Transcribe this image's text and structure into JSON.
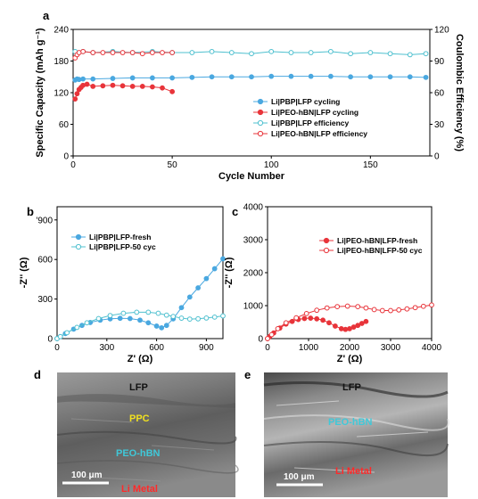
{
  "chart_data": [
    {
      "panel": "a",
      "type": "scatter",
      "xlabel": "Cycle Number",
      "ylabel": "Specific Capacity (mAh g⁻¹)",
      "y2label": "Coulombic Efficiency (%)",
      "xlim": [
        0,
        180
      ],
      "ylim": [
        0,
        240
      ],
      "y2lim": [
        0,
        120
      ],
      "xticks": [
        0,
        50,
        100,
        150
      ],
      "yticks": [
        0,
        60,
        120,
        180,
        240
      ],
      "y2ticks": [
        0,
        30,
        60,
        90,
        120
      ],
      "legend_position": "center-right",
      "series": [
        {
          "name": "Li|PBP|LFP cycling",
          "axis": "left",
          "marker": "filled-circle",
          "color": "#4aa8e0",
          "x": [
            1,
            2,
            3,
            5,
            10,
            20,
            30,
            40,
            50,
            60,
            70,
            80,
            90,
            100,
            110,
            120,
            130,
            140,
            150,
            160,
            170,
            178
          ],
          "y": [
            144,
            146,
            145,
            146,
            146,
            147,
            148,
            148,
            148,
            149,
            150,
            150,
            150,
            151,
            151,
            151,
            151,
            150,
            150,
            150,
            150,
            149
          ]
        },
        {
          "name": "Li|PEO-hBN|LFP cycling",
          "axis": "left",
          "marker": "filled-circle",
          "color": "#e8343a",
          "x": [
            1,
            2,
            3,
            4,
            5,
            7,
            10,
            15,
            20,
            25,
            30,
            35,
            40,
            45,
            50
          ],
          "y": [
            108,
            118,
            126,
            130,
            134,
            136,
            132,
            133,
            134,
            133,
            132,
            132,
            131,
            129,
            122
          ]
        },
        {
          "name": "Li|PBP|LFP efficiency",
          "axis": "right",
          "marker": "open-circle",
          "color": "#4fc0cf",
          "x": [
            1,
            5,
            10,
            20,
            30,
            40,
            50,
            60,
            70,
            80,
            90,
            100,
            110,
            120,
            130,
            140,
            150,
            160,
            170,
            178
          ],
          "y": [
            99,
            99,
            98,
            99,
            98,
            99,
            98,
            98,
            99,
            98,
            97,
            99,
            98,
            98,
            99,
            97,
            98,
            97,
            96,
            97
          ]
        },
        {
          "name": "Li|PEO-hBN|LFP efficiency",
          "axis": "right",
          "marker": "open-circle",
          "color": "#e8343a",
          "x": [
            1,
            2,
            3,
            5,
            10,
            15,
            20,
            25,
            30,
            35,
            40,
            45,
            50
          ],
          "y": [
            93,
            96,
            98,
            99,
            98,
            98,
            98,
            98,
            98,
            97,
            98,
            98,
            98
          ]
        }
      ]
    },
    {
      "panel": "b",
      "type": "scatter",
      "xlabel": "Z' (Ω)",
      "ylabel": "-Z'' (Ω)",
      "xlim": [
        0,
        1000
      ],
      "ylim": [
        0,
        1000
      ],
      "xticks": [
        0,
        300,
        600,
        900
      ],
      "yticks": [
        0,
        300,
        600,
        900
      ],
      "ytick_labels": [
        "0",
        "300",
        "600",
        "'900"
      ],
      "legend_position": "top-left",
      "series": [
        {
          "name": "Li|PBP|LFP-fresh",
          "marker": "filled-circle",
          "color": "#4aa8e0",
          "x": [
            0,
            20,
            50,
            100,
            150,
            200,
            260,
            320,
            380,
            440,
            500,
            550,
            600,
            630,
            660,
            700,
            750,
            800,
            850,
            900,
            950,
            1000
          ],
          "y": [
            0,
            15,
            38,
            72,
            100,
            122,
            140,
            150,
            154,
            152,
            140,
            120,
            95,
            82,
            100,
            150,
            235,
            315,
            385,
            455,
            530,
            605
          ]
        },
        {
          "name": "Li|PBP|LFP-50 cyc",
          "marker": "open-circle",
          "color": "#4fc0cf",
          "x": [
            0,
            20,
            60,
            120,
            180,
            250,
            320,
            400,
            480,
            550,
            610,
            660,
            700,
            750,
            800,
            850,
            900,
            950,
            1000
          ],
          "y": [
            0,
            15,
            45,
            85,
            120,
            152,
            175,
            192,
            200,
            200,
            192,
            178,
            168,
            155,
            148,
            150,
            156,
            163,
            172
          ]
        }
      ]
    },
    {
      "panel": "c",
      "type": "scatter",
      "xlabel": "Z' (Ω)",
      "ylabel": "-Z'' (Ω)",
      "xlim": [
        0,
        4000
      ],
      "ylim": [
        0,
        4000
      ],
      "xticks": [
        0,
        1000,
        2000,
        3000,
        4000
      ],
      "yticks": [
        0,
        1000,
        2000,
        3000,
        4000
      ],
      "legend_position": "center-right",
      "series": [
        {
          "name": "Li|PEO-hBN|LFP-fresh",
          "marker": "filled-circle",
          "color": "#e8343a",
          "x": [
            0,
            50,
            150,
            300,
            450,
            600,
            750,
            900,
            1050,
            1200,
            1350,
            1500,
            1650,
            1800,
            1900,
            2000,
            2100,
            2200,
            2300,
            2400
          ],
          "y": [
            0,
            60,
            170,
            320,
            440,
            520,
            580,
            610,
            620,
            600,
            560,
            480,
            380,
            300,
            280,
            300,
            350,
            400,
            460,
            520
          ]
        },
        {
          "name": "Li|PEO-hBN|LFP-50 cyc",
          "marker": "open-circle",
          "color": "#e8343a",
          "x": [
            0,
            100,
            250,
            450,
            700,
            950,
            1200,
            1450,
            1700,
            1950,
            2200,
            2400,
            2600,
            2800,
            3000,
            3200,
            3400,
            3600,
            3800,
            4000
          ],
          "y": [
            0,
            120,
            300,
            480,
            630,
            760,
            860,
            930,
            970,
            985,
            970,
            930,
            880,
            850,
            850,
            870,
            900,
            940,
            980,
            1020
          ]
        }
      ]
    }
  ],
  "panels": {
    "a": "a",
    "b": "b",
    "c": "c",
    "d": "d",
    "e": "e"
  },
  "sem_d": {
    "labels": [
      "LFP",
      "PPC",
      "PEO-hBN",
      "Li Metal"
    ],
    "label_colors": [
      "#111111",
      "#f0e020",
      "#40c8d8",
      "#ff2a2a"
    ],
    "scalebar": "100 μm"
  },
  "sem_e": {
    "labels": [
      "LFP",
      "PEO-hBN",
      "Li Metal"
    ],
    "label_colors": [
      "#111111",
      "#40c8d8",
      "#ff2a2a"
    ],
    "scalebar": "100 μm"
  }
}
